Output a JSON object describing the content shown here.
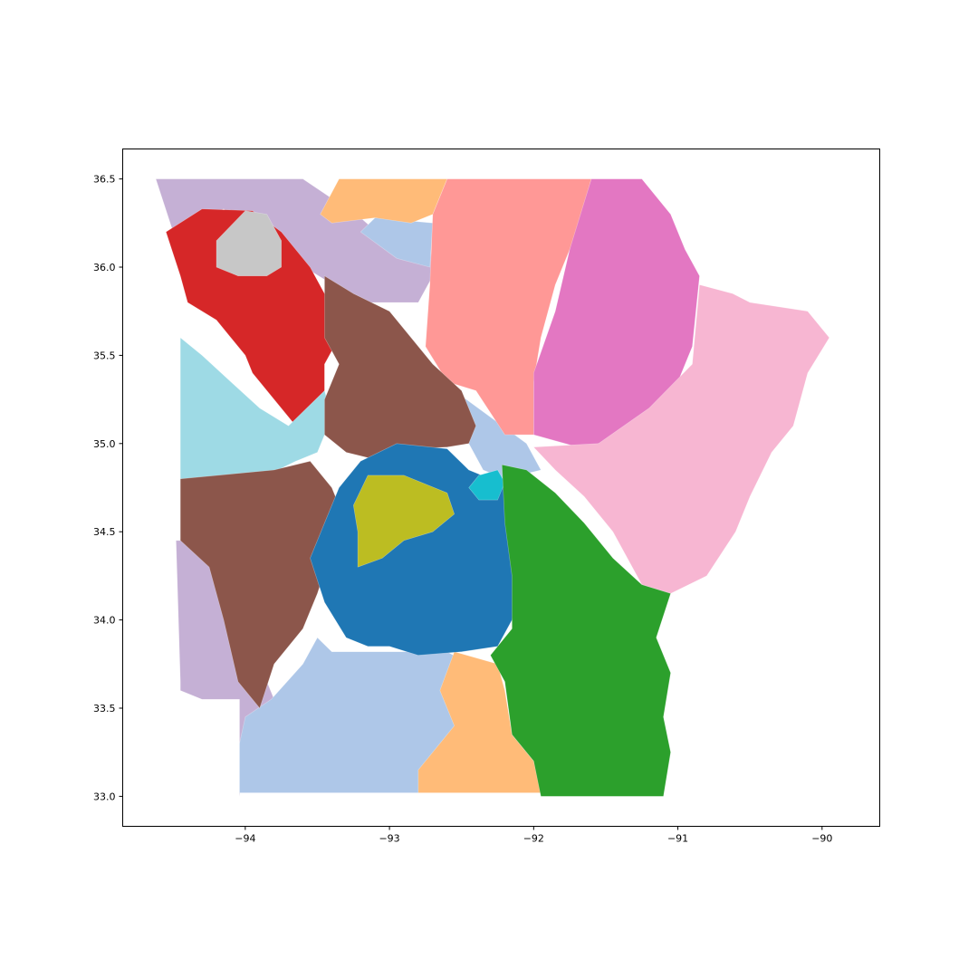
{
  "chart_data": {
    "type": "map",
    "title": "",
    "xlabel": "",
    "ylabel": "",
    "xlim": [
      -94.85,
      -89.6
    ],
    "ylim": [
      32.83,
      36.67
    ],
    "x_ticks": [
      {
        "value": -94,
        "label": "−94"
      },
      {
        "value": -93,
        "label": "−93"
      },
      {
        "value": -92,
        "label": "−92"
      },
      {
        "value": -91,
        "label": "−91"
      },
      {
        "value": -90,
        "label": "−90"
      }
    ],
    "y_ticks": [
      {
        "value": 33.0,
        "label": "33.0"
      },
      {
        "value": 33.5,
        "label": "33.5"
      },
      {
        "value": 34.0,
        "label": "34.0"
      },
      {
        "value": 34.5,
        "label": "34.5"
      },
      {
        "value": 35.0,
        "label": "35.0"
      },
      {
        "value": 35.5,
        "label": "35.5"
      },
      {
        "value": 36.0,
        "label": "36.0"
      },
      {
        "value": 36.5,
        "label": "36.5"
      }
    ],
    "grid": false,
    "legend": "none",
    "regions": [
      {
        "name": "lavender-west",
        "color": "#c5b0d5",
        "polygon": [
          [
            -94.62,
            36.5
          ],
          [
            -93.6,
            36.5
          ],
          [
            -93.2,
            36.28
          ],
          [
            -92.95,
            36.1
          ],
          [
            -92.72,
            36.15
          ],
          [
            -92.7,
            35.95
          ],
          [
            -92.8,
            35.8
          ],
          [
            -93.25,
            35.8
          ],
          [
            -93.45,
            35.93
          ],
          [
            -93.75,
            36.08
          ],
          [
            -93.95,
            36.2
          ],
          [
            -94.15,
            36.33
          ],
          [
            -94.5,
            36.2
          ]
        ]
      },
      {
        "name": "lavender-southwest",
        "color": "#c5b0d5",
        "polygon": [
          [
            -94.48,
            34.45
          ],
          [
            -94.2,
            34.45
          ],
          [
            -94.1,
            34.1
          ],
          [
            -93.9,
            33.75
          ],
          [
            -93.75,
            33.45
          ],
          [
            -93.85,
            33.3
          ],
          [
            -94.0,
            33.25
          ],
          [
            -94.04,
            33.0
          ],
          [
            -94.04,
            33.55
          ],
          [
            -94.3,
            33.55
          ],
          [
            -94.45,
            33.6
          ],
          [
            -94.45,
            33.65
          ]
        ]
      },
      {
        "name": "pale-blue-south",
        "color": "#aec7e8",
        "polygon": [
          [
            -94.04,
            33.02
          ],
          [
            -92.5,
            33.02
          ],
          [
            -92.42,
            33.1
          ],
          [
            -92.5,
            33.3
          ],
          [
            -92.55,
            33.55
          ],
          [
            -92.45,
            33.75
          ],
          [
            -92.6,
            33.82
          ],
          [
            -93.4,
            33.82
          ],
          [
            -93.5,
            33.9
          ],
          [
            -93.6,
            33.75
          ],
          [
            -93.82,
            33.55
          ],
          [
            -94.0,
            33.45
          ],
          [
            -94.04,
            33.3
          ]
        ]
      },
      {
        "name": "pale-blue-north",
        "color": "#aec7e8",
        "polygon": [
          [
            -93.1,
            36.28
          ],
          [
            -92.7,
            36.25
          ],
          [
            -92.72,
            36.0
          ],
          [
            -92.95,
            36.05
          ],
          [
            -93.2,
            36.2
          ]
        ]
      },
      {
        "name": "pale-blue-central",
        "color": "#aec7e8",
        "polygon": [
          [
            -92.55,
            35.3
          ],
          [
            -92.05,
            35.0
          ],
          [
            -91.95,
            34.85
          ],
          [
            -92.2,
            34.8
          ],
          [
            -92.35,
            34.85
          ],
          [
            -92.45,
            35.0
          ],
          [
            -92.45,
            35.15
          ]
        ]
      },
      {
        "name": "orange-north",
        "color": "#ffbb78",
        "polygon": [
          [
            -93.35,
            36.5
          ],
          [
            -92.6,
            36.5
          ],
          [
            -92.7,
            36.3
          ],
          [
            -92.85,
            36.25
          ],
          [
            -93.1,
            36.28
          ],
          [
            -93.4,
            36.25
          ],
          [
            -93.48,
            36.3
          ]
        ]
      },
      {
        "name": "orange-south",
        "color": "#ffbb78",
        "polygon": [
          [
            -92.8,
            33.02
          ],
          [
            -91.95,
            33.02
          ],
          [
            -92.0,
            33.2
          ],
          [
            -92.15,
            33.35
          ],
          [
            -92.2,
            33.6
          ],
          [
            -92.25,
            33.75
          ],
          [
            -92.55,
            33.82
          ],
          [
            -92.65,
            33.6
          ],
          [
            -92.55,
            33.4
          ],
          [
            -92.8,
            33.15
          ]
        ]
      },
      {
        "name": "salmon-north",
        "color": "#ff9896",
        "polygon": [
          [
            -92.6,
            36.5
          ],
          [
            -91.6,
            36.5
          ],
          [
            -91.7,
            36.2
          ],
          [
            -91.85,
            35.9
          ],
          [
            -91.95,
            35.6
          ],
          [
            -92.0,
            35.35
          ],
          [
            -92.0,
            35.05
          ],
          [
            -92.2,
            35.05
          ],
          [
            -92.4,
            35.3
          ],
          [
            -92.6,
            35.35
          ],
          [
            -92.75,
            35.55
          ],
          [
            -92.72,
            35.9
          ],
          [
            -92.7,
            36.3
          ]
        ]
      },
      {
        "name": "magenta-northeast",
        "color": "#e377c2",
        "polygon": [
          [
            -91.6,
            36.5
          ],
          [
            -91.25,
            36.5
          ],
          [
            -91.05,
            36.3
          ],
          [
            -90.95,
            36.1
          ],
          [
            -90.85,
            35.95
          ],
          [
            -90.9,
            35.55
          ],
          [
            -91.0,
            35.35
          ],
          [
            -91.1,
            35.2
          ],
          [
            -91.3,
            35.05
          ],
          [
            -91.55,
            35.0
          ],
          [
            -91.65,
            34.97
          ],
          [
            -92.0,
            35.05
          ],
          [
            -92.0,
            35.4
          ],
          [
            -91.85,
            35.75
          ],
          [
            -91.75,
            36.1
          ]
        ]
      },
      {
        "name": "pink-east",
        "color": "#f7b6d2",
        "polygon": [
          [
            -91.55,
            35.0
          ],
          [
            -91.2,
            35.2
          ],
          [
            -90.9,
            35.45
          ],
          [
            -90.85,
            35.9
          ],
          [
            -90.62,
            35.85
          ],
          [
            -90.5,
            35.8
          ],
          [
            -90.1,
            35.75
          ],
          [
            -89.95,
            35.6
          ],
          [
            -90.1,
            35.4
          ],
          [
            -90.2,
            35.1
          ],
          [
            -90.35,
            34.95
          ],
          [
            -90.5,
            34.7
          ],
          [
            -90.6,
            34.5
          ],
          [
            -90.8,
            34.25
          ],
          [
            -91.05,
            34.15
          ],
          [
            -91.25,
            34.2
          ],
          [
            -91.45,
            34.5
          ],
          [
            -91.65,
            34.7
          ],
          [
            -91.85,
            34.85
          ],
          [
            -92.0,
            34.98
          ]
        ]
      },
      {
        "name": "red-northwest",
        "color": "#d62728",
        "polygon": [
          [
            -94.55,
            36.2
          ],
          [
            -94.3,
            36.33
          ],
          [
            -93.95,
            36.32
          ],
          [
            -93.75,
            36.2
          ],
          [
            -93.55,
            36.0
          ],
          [
            -93.45,
            35.85
          ],
          [
            -93.35,
            35.75
          ],
          [
            -93.35,
            35.6
          ],
          [
            -93.45,
            35.45
          ],
          [
            -93.45,
            35.3
          ],
          [
            -93.55,
            35.15
          ],
          [
            -93.65,
            35.1
          ],
          [
            -93.8,
            35.25
          ],
          [
            -93.95,
            35.4
          ],
          [
            -94.0,
            35.5
          ],
          [
            -94.2,
            35.7
          ],
          [
            -94.4,
            35.8
          ],
          [
            -94.45,
            35.95
          ]
        ]
      },
      {
        "name": "gray-northwest",
        "color": "#c7c7c7",
        "polygon": [
          [
            -94.2,
            36.15
          ],
          [
            -94.0,
            36.32
          ],
          [
            -93.85,
            36.3
          ],
          [
            -93.75,
            36.15
          ],
          [
            -93.75,
            36.0
          ],
          [
            -93.85,
            35.95
          ],
          [
            -94.05,
            35.95
          ],
          [
            -94.2,
            36.0
          ]
        ]
      },
      {
        "name": "cyan-west",
        "color": "#9edae5",
        "polygon": [
          [
            -94.45,
            35.6
          ],
          [
            -94.3,
            35.5
          ],
          [
            -94.1,
            35.35
          ],
          [
            -93.9,
            35.2
          ],
          [
            -93.7,
            35.1
          ],
          [
            -93.45,
            35.3
          ],
          [
            -93.4,
            35.15
          ],
          [
            -93.5,
            34.95
          ],
          [
            -93.65,
            34.9
          ],
          [
            -93.9,
            34.8
          ],
          [
            -94.45,
            34.8
          ]
        ]
      },
      {
        "name": "brown-west",
        "color": "#8c564b",
        "polygon": [
          [
            -94.45,
            34.8
          ],
          [
            -93.8,
            34.85
          ],
          [
            -93.55,
            34.9
          ],
          [
            -93.4,
            34.75
          ],
          [
            -93.3,
            34.55
          ],
          [
            -93.4,
            34.4
          ],
          [
            -93.5,
            34.15
          ],
          [
            -93.6,
            33.95
          ],
          [
            -93.8,
            33.75
          ],
          [
            -93.9,
            33.5
          ],
          [
            -94.05,
            33.65
          ],
          [
            -94.15,
            34.0
          ],
          [
            -94.25,
            34.3
          ],
          [
            -94.45,
            34.45
          ]
        ]
      },
      {
        "name": "brown-central",
        "color": "#8c564b",
        "polygon": [
          [
            -93.45,
            35.95
          ],
          [
            -93.25,
            35.85
          ],
          [
            -93.0,
            35.75
          ],
          [
            -92.85,
            35.6
          ],
          [
            -92.7,
            35.45
          ],
          [
            -92.5,
            35.3
          ],
          [
            -92.4,
            35.1
          ],
          [
            -92.45,
            35.0
          ],
          [
            -92.6,
            34.98
          ],
          [
            -92.85,
            34.97
          ],
          [
            -93.05,
            34.9
          ],
          [
            -93.3,
            34.95
          ],
          [
            -93.45,
            35.05
          ],
          [
            -93.45,
            35.25
          ],
          [
            -93.35,
            35.45
          ],
          [
            -93.45,
            35.6
          ]
        ]
      },
      {
        "name": "blue-central",
        "color": "#1f77b4",
        "polygon": [
          [
            -93.35,
            34.75
          ],
          [
            -93.2,
            34.9
          ],
          [
            -92.95,
            35.0
          ],
          [
            -92.6,
            34.97
          ],
          [
            -92.45,
            34.85
          ],
          [
            -92.3,
            34.8
          ],
          [
            -92.2,
            34.75
          ],
          [
            -92.15,
            34.55
          ],
          [
            -92.1,
            34.3
          ],
          [
            -92.15,
            34.0
          ],
          [
            -92.25,
            33.85
          ],
          [
            -92.5,
            33.82
          ],
          [
            -92.8,
            33.8
          ],
          [
            -93.0,
            33.85
          ],
          [
            -93.15,
            33.85
          ],
          [
            -93.3,
            33.9
          ],
          [
            -93.45,
            34.1
          ],
          [
            -93.55,
            34.35
          ],
          [
            -93.45,
            34.55
          ]
        ]
      },
      {
        "name": "olive-central",
        "color": "#bcbd22",
        "polygon": [
          [
            -93.15,
            34.82
          ],
          [
            -92.9,
            34.82
          ],
          [
            -92.6,
            34.72
          ],
          [
            -92.55,
            34.6
          ],
          [
            -92.7,
            34.5
          ],
          [
            -92.9,
            34.45
          ],
          [
            -93.05,
            34.35
          ],
          [
            -93.22,
            34.3
          ],
          [
            -93.22,
            34.5
          ],
          [
            -93.25,
            34.65
          ]
        ]
      },
      {
        "name": "teal-little-rock",
        "color": "#17becf",
        "polygon": [
          [
            -92.38,
            34.82
          ],
          [
            -92.25,
            34.85
          ],
          [
            -92.2,
            34.78
          ],
          [
            -92.25,
            34.68
          ],
          [
            -92.38,
            34.68
          ],
          [
            -92.45,
            34.75
          ]
        ]
      },
      {
        "name": "green-southeast",
        "color": "#2ca02c",
        "polygon": [
          [
            -92.22,
            34.88
          ],
          [
            -92.05,
            34.85
          ],
          [
            -91.85,
            34.72
          ],
          [
            -91.65,
            34.55
          ],
          [
            -91.45,
            34.35
          ],
          [
            -91.25,
            34.2
          ],
          [
            -91.05,
            34.15
          ],
          [
            -91.15,
            33.9
          ],
          [
            -91.05,
            33.7
          ],
          [
            -91.1,
            33.45
          ],
          [
            -91.05,
            33.25
          ],
          [
            -91.1,
            33.0
          ],
          [
            -91.95,
            33.0
          ],
          [
            -92.0,
            33.2
          ],
          [
            -92.15,
            33.35
          ],
          [
            -92.2,
            33.65
          ],
          [
            -92.3,
            33.8
          ],
          [
            -92.15,
            33.95
          ],
          [
            -92.15,
            34.25
          ],
          [
            -92.2,
            34.55
          ]
        ]
      }
    ]
  }
}
